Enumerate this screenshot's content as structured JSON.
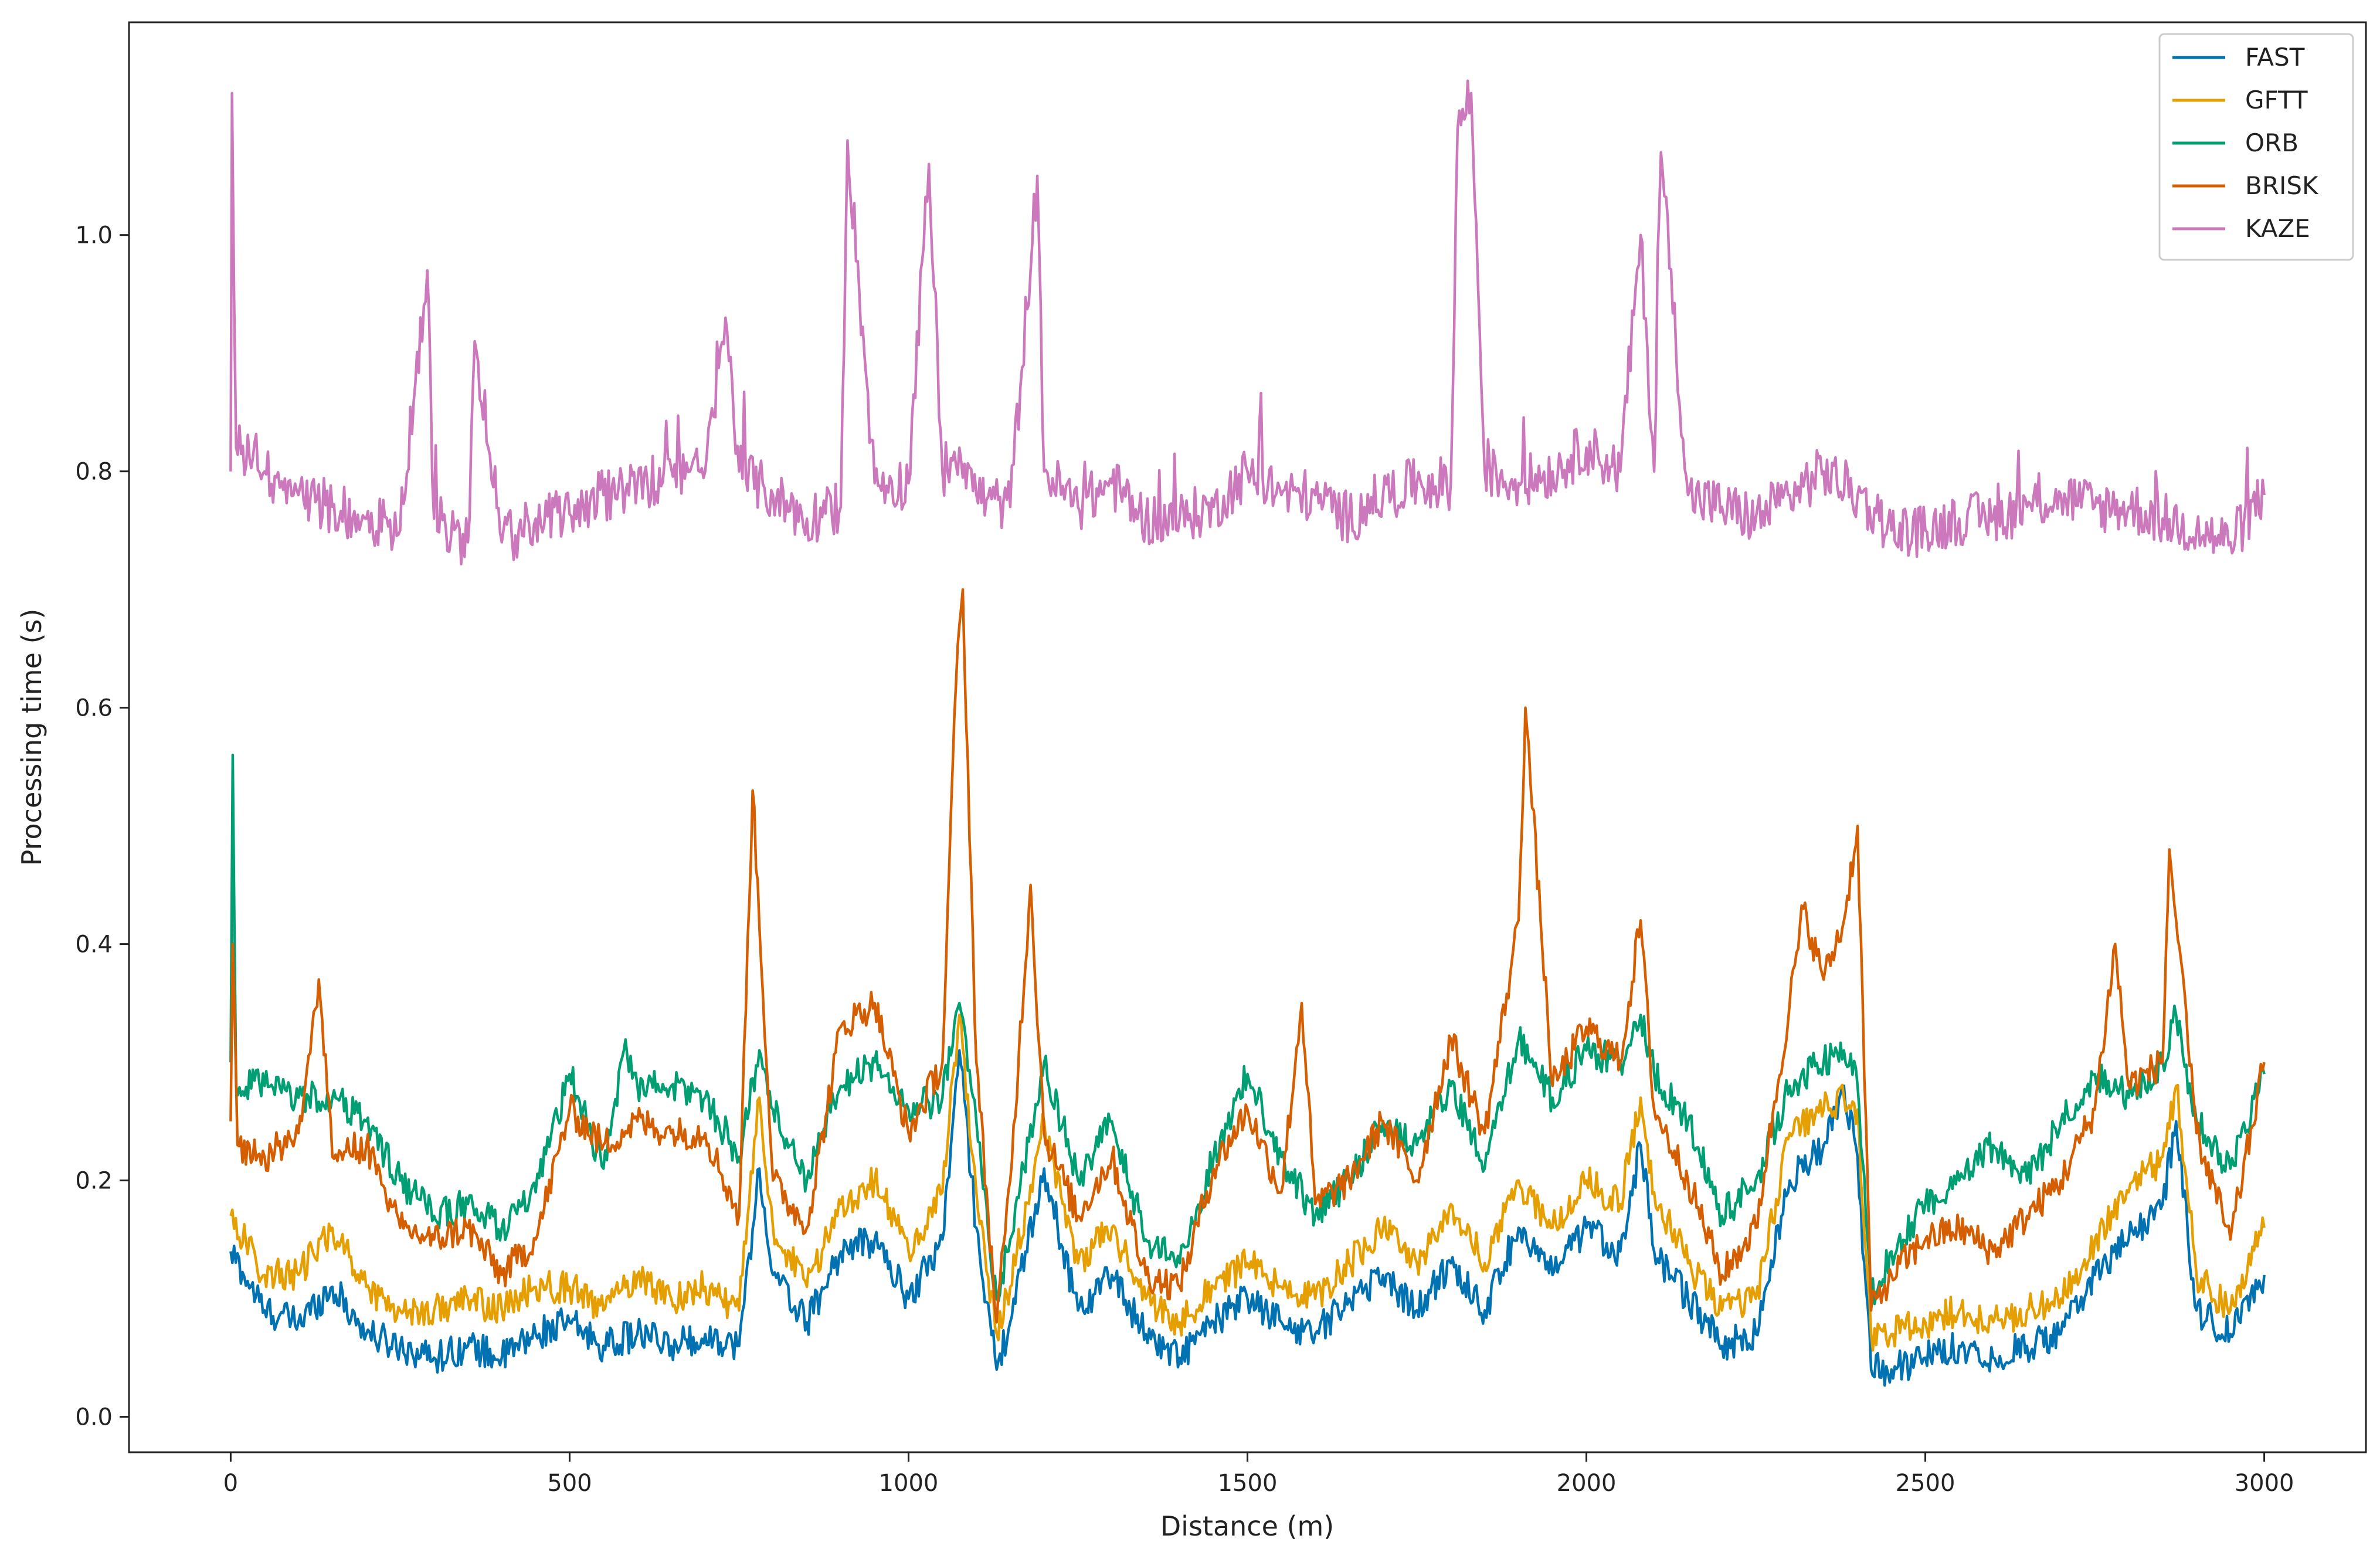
{
  "chart_data": {
    "type": "line",
    "title": "",
    "xlabel": "Distance (m)",
    "ylabel": "Processing time (s)",
    "xlim": [
      -150,
      3150
    ],
    "ylim": [
      -0.03,
      1.18
    ],
    "xticks": [
      0,
      500,
      1000,
      1500,
      2000,
      2500,
      3000
    ],
    "yticks": [
      0.0,
      0.2,
      0.4,
      0.6,
      0.8,
      1.0
    ],
    "xtick_labels": [
      "0",
      "500",
      "1000",
      "1500",
      "2000",
      "2500",
      "3000"
    ],
    "ytick_labels": [
      "0.0",
      "0.2",
      "0.4",
      "0.6",
      "0.8",
      "1.0"
    ],
    "grid": false,
    "legend_position": "top-right",
    "series": [
      {
        "name": "FAST",
        "color": "#0072B2",
        "x": [
          0,
          50,
          100,
          150,
          200,
          250,
          300,
          350,
          400,
          450,
          500,
          550,
          600,
          650,
          700,
          750,
          780,
          800,
          850,
          900,
          950,
          1000,
          1050,
          1075,
          1100,
          1130,
          1150,
          1200,
          1250,
          1300,
          1350,
          1400,
          1450,
          1500,
          1550,
          1600,
          1650,
          1700,
          1750,
          1800,
          1850,
          1900,
          1950,
          2000,
          2050,
          2080,
          2100,
          2150,
          2200,
          2250,
          2300,
          2350,
          2380,
          2400,
          2420,
          2450,
          2500,
          2550,
          2600,
          2650,
          2700,
          2750,
          2800,
          2850,
          2870,
          2900,
          2950,
          3000
        ],
        "y": [
          0.14,
          0.09,
          0.08,
          0.11,
          0.07,
          0.06,
          0.05,
          0.06,
          0.05,
          0.07,
          0.08,
          0.06,
          0.07,
          0.06,
          0.07,
          0.06,
          0.21,
          0.12,
          0.08,
          0.14,
          0.15,
          0.1,
          0.15,
          0.31,
          0.16,
          0.04,
          0.08,
          0.21,
          0.09,
          0.12,
          0.07,
          0.05,
          0.08,
          0.1,
          0.08,
          0.07,
          0.1,
          0.12,
          0.09,
          0.13,
          0.09,
          0.16,
          0.12,
          0.16,
          0.14,
          0.23,
          0.14,
          0.1,
          0.06,
          0.07,
          0.2,
          0.23,
          0.28,
          0.22,
          0.04,
          0.04,
          0.05,
          0.06,
          0.05,
          0.06,
          0.07,
          0.12,
          0.15,
          0.18,
          0.25,
          0.09,
          0.07,
          0.12
        ]
      },
      {
        "name": "GFTT",
        "color": "#E69F00",
        "x": [
          0,
          50,
          100,
          150,
          200,
          250,
          300,
          350,
          400,
          450,
          500,
          550,
          600,
          650,
          700,
          750,
          780,
          800,
          850,
          900,
          950,
          1000,
          1050,
          1075,
          1100,
          1130,
          1150,
          1200,
          1250,
          1300,
          1350,
          1400,
          1450,
          1500,
          1550,
          1600,
          1650,
          1700,
          1750,
          1800,
          1850,
          1900,
          1950,
          2000,
          2050,
          2080,
          2100,
          2150,
          2200,
          2250,
          2300,
          2350,
          2380,
          2400,
          2420,
          2450,
          2500,
          2550,
          2600,
          2650,
          2700,
          2750,
          2800,
          2850,
          2870,
          2900,
          2950,
          3000
        ],
        "y": [
          0.17,
          0.12,
          0.12,
          0.16,
          0.11,
          0.09,
          0.09,
          0.1,
          0.09,
          0.11,
          0.11,
          0.09,
          0.12,
          0.1,
          0.11,
          0.09,
          0.27,
          0.16,
          0.11,
          0.18,
          0.2,
          0.14,
          0.19,
          0.34,
          0.19,
          0.07,
          0.11,
          0.25,
          0.13,
          0.16,
          0.1,
          0.08,
          0.11,
          0.13,
          0.11,
          0.1,
          0.13,
          0.16,
          0.13,
          0.18,
          0.13,
          0.2,
          0.16,
          0.2,
          0.18,
          0.27,
          0.19,
          0.13,
          0.09,
          0.1,
          0.24,
          0.26,
          0.27,
          0.26,
          0.07,
          0.07,
          0.08,
          0.09,
          0.08,
          0.09,
          0.1,
          0.15,
          0.19,
          0.22,
          0.28,
          0.12,
          0.09,
          0.16
        ]
      },
      {
        "name": "ORB",
        "color": "#009E73",
        "x": [
          0,
          3,
          8,
          50,
          100,
          150,
          200,
          250,
          300,
          350,
          400,
          450,
          500,
          550,
          580,
          600,
          650,
          700,
          750,
          780,
          800,
          850,
          900,
          950,
          1000,
          1050,
          1075,
          1100,
          1130,
          1150,
          1200,
          1250,
          1300,
          1350,
          1400,
          1450,
          1500,
          1550,
          1600,
          1650,
          1700,
          1750,
          1800,
          1850,
          1900,
          1950,
          2000,
          2050,
          2080,
          2100,
          2150,
          2200,
          2250,
          2300,
          2350,
          2380,
          2400,
          2420,
          2450,
          2500,
          2550,
          2600,
          2650,
          2700,
          2750,
          2800,
          2850,
          2870,
          2900,
          2950,
          3000
        ],
        "y": [
          0.3,
          0.56,
          0.28,
          0.28,
          0.27,
          0.27,
          0.25,
          0.2,
          0.17,
          0.18,
          0.16,
          0.19,
          0.29,
          0.21,
          0.31,
          0.28,
          0.28,
          0.27,
          0.22,
          0.31,
          0.26,
          0.2,
          0.28,
          0.3,
          0.26,
          0.27,
          0.35,
          0.25,
          0.1,
          0.15,
          0.3,
          0.2,
          0.25,
          0.15,
          0.13,
          0.22,
          0.29,
          0.22,
          0.17,
          0.2,
          0.25,
          0.23,
          0.28,
          0.21,
          0.32,
          0.27,
          0.31,
          0.3,
          0.34,
          0.29,
          0.25,
          0.17,
          0.2,
          0.28,
          0.3,
          0.31,
          0.28,
          0.1,
          0.14,
          0.18,
          0.2,
          0.23,
          0.2,
          0.25,
          0.29,
          0.27,
          0.3,
          0.34,
          0.25,
          0.21,
          0.29
        ]
      },
      {
        "name": "BRISK",
        "color": "#D55E00",
        "x": [
          0,
          3,
          10,
          50,
          100,
          130,
          150,
          200,
          250,
          300,
          350,
          400,
          450,
          500,
          550,
          600,
          650,
          700,
          750,
          770,
          800,
          850,
          900,
          950,
          1000,
          1050,
          1070,
          1080,
          1100,
          1130,
          1150,
          1180,
          1200,
          1250,
          1300,
          1350,
          1400,
          1450,
          1500,
          1550,
          1580,
          1600,
          1650,
          1700,
          1750,
          1800,
          1850,
          1900,
          1910,
          1950,
          2000,
          2050,
          2080,
          2100,
          2150,
          2200,
          2250,
          2300,
          2320,
          2350,
          2380,
          2400,
          2420,
          2450,
          2500,
          2550,
          2600,
          2650,
          2700,
          2750,
          2780,
          2800,
          2850,
          2860,
          2900,
          2950,
          3000
        ],
        "y": [
          0.25,
          0.4,
          0.23,
          0.22,
          0.24,
          0.37,
          0.22,
          0.23,
          0.16,
          0.15,
          0.16,
          0.12,
          0.15,
          0.26,
          0.23,
          0.25,
          0.24,
          0.24,
          0.17,
          0.53,
          0.2,
          0.16,
          0.33,
          0.35,
          0.24,
          0.3,
          0.62,
          0.7,
          0.3,
          0.08,
          0.2,
          0.45,
          0.24,
          0.17,
          0.22,
          0.12,
          0.11,
          0.21,
          0.26,
          0.19,
          0.35,
          0.18,
          0.2,
          0.25,
          0.2,
          0.32,
          0.24,
          0.42,
          0.6,
          0.28,
          0.33,
          0.3,
          0.42,
          0.26,
          0.2,
          0.12,
          0.16,
          0.35,
          0.43,
          0.37,
          0.42,
          0.5,
          0.09,
          0.12,
          0.15,
          0.16,
          0.14,
          0.17,
          0.2,
          0.26,
          0.4,
          0.28,
          0.3,
          0.48,
          0.24,
          0.15,
          0.3
        ]
      },
      {
        "name": "KAZE",
        "color": "#CC78BC",
        "x": [
          0,
          2,
          8,
          50,
          100,
          150,
          200,
          250,
          290,
          300,
          350,
          360,
          400,
          450,
          550,
          600,
          700,
          730,
          750,
          800,
          850,
          900,
          910,
          950,
          1000,
          1030,
          1050,
          1075,
          1100,
          1150,
          1190,
          1200,
          1250,
          1300,
          1350,
          1400,
          1450,
          1500,
          1550,
          1600,
          1650,
          1700,
          1750,
          1800,
          1810,
          1830,
          1850,
          1900,
          1950,
          2000,
          2050,
          2080,
          2100,
          2110,
          2150,
          2200,
          2250,
          2300,
          2350,
          2400,
          2450,
          2500,
          2550,
          2600,
          2650,
          2700,
          2750,
          2800,
          2850,
          2900,
          2950,
          3000
        ],
        "y": [
          0.8,
          1.12,
          0.82,
          0.8,
          0.78,
          0.77,
          0.76,
          0.75,
          0.97,
          0.76,
          0.74,
          0.91,
          0.74,
          0.76,
          0.78,
          0.79,
          0.8,
          0.93,
          0.8,
          0.78,
          0.76,
          0.77,
          1.08,
          0.79,
          0.79,
          1.06,
          0.8,
          0.82,
          0.78,
          0.77,
          1.05,
          0.8,
          0.77,
          0.79,
          0.76,
          0.76,
          0.77,
          0.8,
          0.78,
          0.78,
          0.76,
          0.78,
          0.79,
          0.79,
          1.09,
          1.12,
          0.8,
          0.79,
          0.8,
          0.82,
          0.8,
          1.0,
          0.8,
          1.07,
          0.78,
          0.77,
          0.76,
          0.78,
          0.8,
          0.78,
          0.75,
          0.75,
          0.76,
          0.76,
          0.77,
          0.78,
          0.77,
          0.77,
          0.76,
          0.75,
          0.74,
          0.78
        ]
      }
    ]
  }
}
